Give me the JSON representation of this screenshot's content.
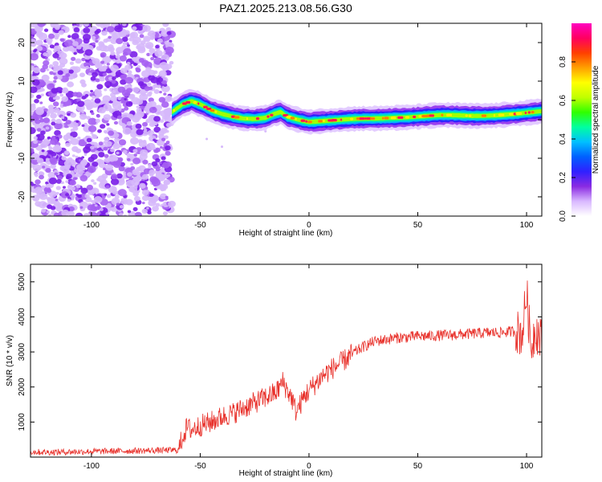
{
  "title": "PAZ1.2025.213.08.56.G30",
  "chart_data": [
    {
      "type": "heatmap",
      "xlabel": "Height of straight line (km)",
      "ylabel": "Frequency (Hz)",
      "xlim": [
        -128,
        107
      ],
      "ylim": [
        -25,
        25
      ],
      "xticks": [
        -100,
        -50,
        0,
        50,
        100
      ],
      "yticks": [
        -20,
        -10,
        0,
        10,
        20
      ],
      "colorbar": {
        "label": "Normalized spectral amplitude",
        "range": [
          0,
          1
        ],
        "ticks": [
          "0.0",
          "0.2",
          "0.4",
          "0.6",
          "0.8"
        ],
        "colors": [
          "#ffffff",
          "#d9b8ff",
          "#8a2be2",
          "#3020ff",
          "#0060ff",
          "#00c0ff",
          "#00ffa0",
          "#30ff00",
          "#c0ff00",
          "#ffff00",
          "#ffa000",
          "#ff4000",
          "#ff0060",
          "#ff00c0"
        ]
      },
      "noise_region": {
        "x": [
          -128,
          -63
        ],
        "amplitude_range": [
          0.0,
          0.3
        ]
      },
      "ridge": {
        "x": [
          -63,
          -58,
          -54,
          -50,
          -45,
          -40,
          -35,
          -30,
          -25,
          -20,
          -16,
          -13,
          -10,
          -5,
          0,
          5,
          10,
          15,
          20,
          25,
          30,
          35,
          40,
          45,
          50,
          55,
          60,
          65,
          70,
          75,
          80,
          85,
          90,
          95,
          100,
          107
        ],
        "frequency": [
          2.0,
          4.0,
          4.8,
          4.0,
          2.5,
          1.5,
          0.8,
          0.3,
          0.2,
          0.5,
          1.5,
          2.0,
          0.8,
          0.0,
          -0.6,
          -0.4,
          -0.2,
          0.0,
          0.2,
          0.3,
          0.3,
          0.4,
          0.5,
          0.6,
          0.8,
          1.0,
          1.2,
          1.2,
          1.1,
          1.0,
          1.0,
          1.1,
          1.3,
          1.5,
          1.8,
          2.2
        ]
      }
    },
    {
      "type": "line",
      "xlabel": "Height of straight line (km)",
      "ylabel": "SNR (10 * v/v)",
      "xlim": [
        -128,
        107
      ],
      "ylim": [
        0,
        5500
      ],
      "xticks": [
        -100,
        -50,
        0,
        50,
        100
      ],
      "yticks": [
        1000,
        2000,
        3000,
        4000,
        5000
      ],
      "series": [
        {
          "color": "#e8302a",
          "x": [
            -128,
            -120,
            -110,
            -100,
            -90,
            -80,
            -70,
            -60,
            -58,
            -56,
            -54,
            -50,
            -45,
            -40,
            -35,
            -30,
            -25,
            -20,
            -15,
            -12,
            -10,
            -8,
            -6,
            -4,
            -2,
            0,
            3,
            6,
            10,
            15,
            20,
            25,
            30,
            35,
            40,
            45,
            50,
            55,
            60,
            65,
            70,
            75,
            80,
            85,
            90,
            95,
            98,
            100,
            102,
            104,
            107
          ],
          "y": [
            150,
            140,
            150,
            160,
            170,
            180,
            190,
            200,
            600,
            850,
            780,
            900,
            1000,
            1150,
            1250,
            1400,
            1550,
            1700,
            1850,
            2150,
            1900,
            1700,
            1300,
            1500,
            1750,
            1900,
            2100,
            2300,
            2500,
            2700,
            2950,
            3150,
            3300,
            3350,
            3400,
            3420,
            3450,
            3450,
            3470,
            3480,
            3500,
            3520,
            3540,
            3550,
            3560,
            3600,
            3500,
            4700,
            3100,
            3700,
            3300
          ]
        }
      ]
    }
  ]
}
